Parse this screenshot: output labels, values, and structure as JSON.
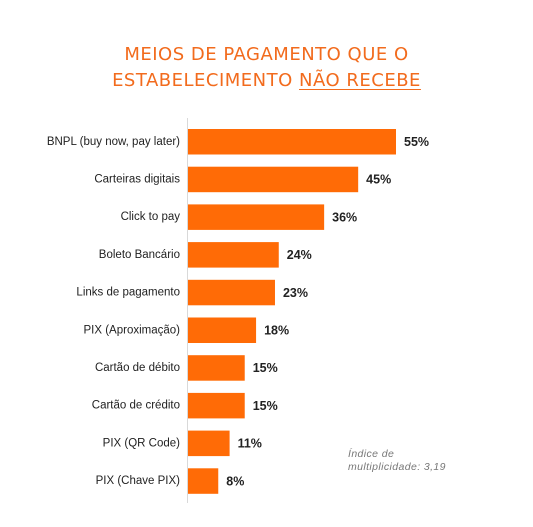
{
  "title": {
    "line1": "MEIOS DE PAGAMENTO QUE O",
    "line2_prefix": "ESTABELECIMENTO ",
    "line2_underlined": "NÃO RECEBE"
  },
  "note": {
    "line1": "Índice de",
    "line2": "multiplicidade: 3,19"
  },
  "colors": {
    "bar": "#FF6B06",
    "title": "#F26B1D",
    "axis": "#D9D9D9",
    "text": "#222222"
  },
  "chart_data": {
    "type": "bar",
    "orientation": "horizontal",
    "categories": [
      "BNPL (buy now, pay later)",
      "Carteiras digitais",
      "Click to pay",
      "Boleto Bancário",
      "Links de pagamento",
      "PIX (Aproximação)",
      "Cartão de débito",
      "Cartão de crédito",
      "PIX (QR Code)",
      "PIX (Chave PIX)"
    ],
    "values": [
      55,
      45,
      36,
      24,
      23,
      18,
      15,
      15,
      11,
      8
    ],
    "value_labels": [
      "55%",
      "45%",
      "36%",
      "24%",
      "23%",
      "18%",
      "15%",
      "15%",
      "11%",
      "8%"
    ],
    "unit": "%",
    "xlim": [
      0,
      55
    ],
    "grid": false,
    "legend": "none"
  }
}
